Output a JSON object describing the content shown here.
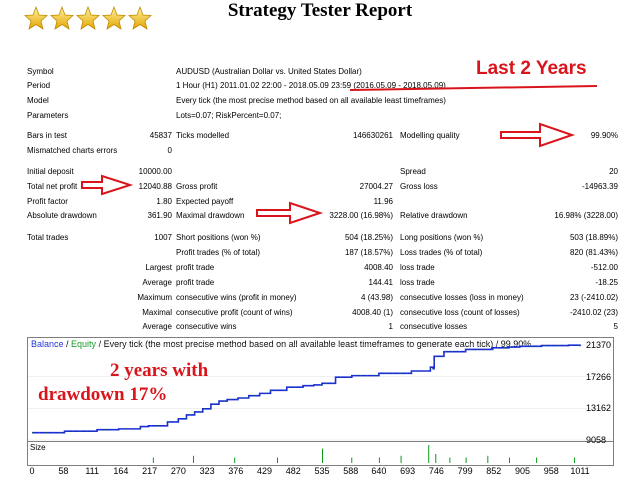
{
  "title": "Strategy Tester Report",
  "stars_icon": "star-icon",
  "annotations": {
    "last_years": "Last 2 Years",
    "two_years": "2 years with",
    "drawdown": "drawdown 17%",
    "color": "#d9141b"
  },
  "info": {
    "symbol_label": "Symbol",
    "symbol_value": "AUDUSD (Australian Dollar vs. United States Dollar)",
    "period_label": "Period",
    "period_value": "1 Hour (H1) 2011.01.02 22:00 - 2018.05.09 23:59 (2016.05.09 - 2018.05.09)",
    "model_label": "Model",
    "model_value": "Every tick (the most precise method based on all available least timeframes)",
    "parameters_label": "Parameters",
    "parameters_value": "Lots=0.07; RiskPercent=0.07;"
  },
  "stats": {
    "bars_label": "Bars in test",
    "bars_value": "45837",
    "ticks_label": "Ticks modelled",
    "ticks_value": "146630261",
    "quality_label": "Modelling quality",
    "quality_value": "99.90%",
    "mismatched_label": "Mismatched charts errors",
    "mismatched_value": "0",
    "initial_label": "Initial deposit",
    "initial_value": "10000.00",
    "spread_label": "Spread",
    "spread_value": "20",
    "netprofit_label": "Total net profit",
    "netprofit_value": "12040.88",
    "grossprofit_label": "Gross profit",
    "grossprofit_value": "27004.27",
    "grossloss_label": "Gross loss",
    "grossloss_value": "-14963.39",
    "pf_label": "Profit factor",
    "pf_value": "1.80",
    "payoff_label": "Expected payoff",
    "payoff_value": "11.96",
    "absdd_label": "Absolute drawdown",
    "absdd_value": "361.90",
    "maxdd_label": "Maximal drawdown",
    "maxdd_value": "3228.00 (16.98%)",
    "reldd_label": "Relative drawdown",
    "reldd_value": "16.98% (3228.00)",
    "trades_label": "Total trades",
    "trades_value": "1007",
    "short_label": "Short positions (won %)",
    "short_value": "504 (18.25%)",
    "long_label": "Long positions (won %)",
    "long_value": "503 (18.89%)",
    "ptrades_label": "Profit trades (% of total)",
    "ptrades_value": "187 (18.57%)",
    "ltrades_label": "Loss trades (% of total)",
    "ltrades_value": "820 (81.43%)",
    "largest_label": "Largest",
    "lp_label": "profit trade",
    "lp_value": "4008.40",
    "ll_label": "loss trade",
    "ll_value": "-512.00",
    "average_label": "Average",
    "ap_label": "profit trade",
    "ap_value": "144.41",
    "al_label": "loss trade",
    "al_value": "-18.25",
    "maximum_label": "Maximum",
    "mcw_label": "consecutive wins (profit in money)",
    "mcw_value": "4 (43.98)",
    "mcl_label": "consecutive losses (loss in money)",
    "mcl_value": "23 (-2410.02)",
    "maximal_label": "Maximal",
    "mxw_label": "consecutive profit (count of wins)",
    "mxw_value": "4008.40 (1)",
    "mxl_label": "consecutive loss (count of losses)",
    "mxl_value": "-2410.02 (23)",
    "average2_label": "Average",
    "acw_label": "consecutive wins",
    "acw_value": "1",
    "acl_label": "consecutive losses",
    "acl_value": "5"
  },
  "chart_header": {
    "balance": "Balance",
    "sep1": " / ",
    "equity": "Equity",
    "rest": " / Every tick (the most precise method based on all available least timeframes to generate each tick) / 99.90%"
  },
  "size_label": "Size",
  "colors": {
    "balance": "#1a2bd6",
    "equity": "#0a9a1a",
    "size_bars": "#0a9a1a",
    "arrows": "#d9141b"
  },
  "chart_data": {
    "type": "line",
    "y_ticks": [
      "21370",
      "17266",
      "13162",
      "9058"
    ],
    "x_ticks": [
      "0",
      "58",
      "111",
      "164",
      "217",
      "270",
      "323",
      "376",
      "429",
      "482",
      "535",
      "588",
      "640",
      "693",
      "746",
      "799",
      "852",
      "905",
      "958",
      "1011"
    ],
    "ylim": [
      9058,
      21370
    ],
    "xlim": [
      0,
      1011
    ],
    "series": [
      {
        "name": "Balance",
        "x": [
          0,
          60,
          120,
          160,
          200,
          215,
          250,
          270,
          285,
          300,
          315,
          330,
          345,
          360,
          380,
          400,
          420,
          440,
          470,
          500,
          520,
          535,
          560,
          590,
          640,
          700,
          735,
          740,
          742,
          760,
          800,
          850,
          880,
          900,
          940,
          990,
          1011
        ],
        "y": [
          10000,
          10200,
          10400,
          10500,
          10800,
          10900,
          11400,
          11800,
          12300,
          12700,
          13100,
          13700,
          14100,
          14300,
          14500,
          14800,
          15100,
          15500,
          15900,
          16100,
          16200,
          16400,
          17200,
          17400,
          17700,
          18000,
          18500,
          18300,
          19900,
          20500,
          20800,
          21000,
          21100,
          21200,
          21300,
          21350,
          21200
        ]
      }
    ],
    "size_bars_x": [
      223,
      297,
      373,
      452,
      535,
      589,
      640,
      680,
      731,
      744,
      770,
      800,
      840,
      880,
      930,
      1000
    ],
    "size_bars_h": [
      0.3,
      0.4,
      0.3,
      0.3,
      0.8,
      0.3,
      0.3,
      0.4,
      1.0,
      0.5,
      0.3,
      0.3,
      0.4,
      0.3,
      0.3,
      0.3
    ]
  }
}
